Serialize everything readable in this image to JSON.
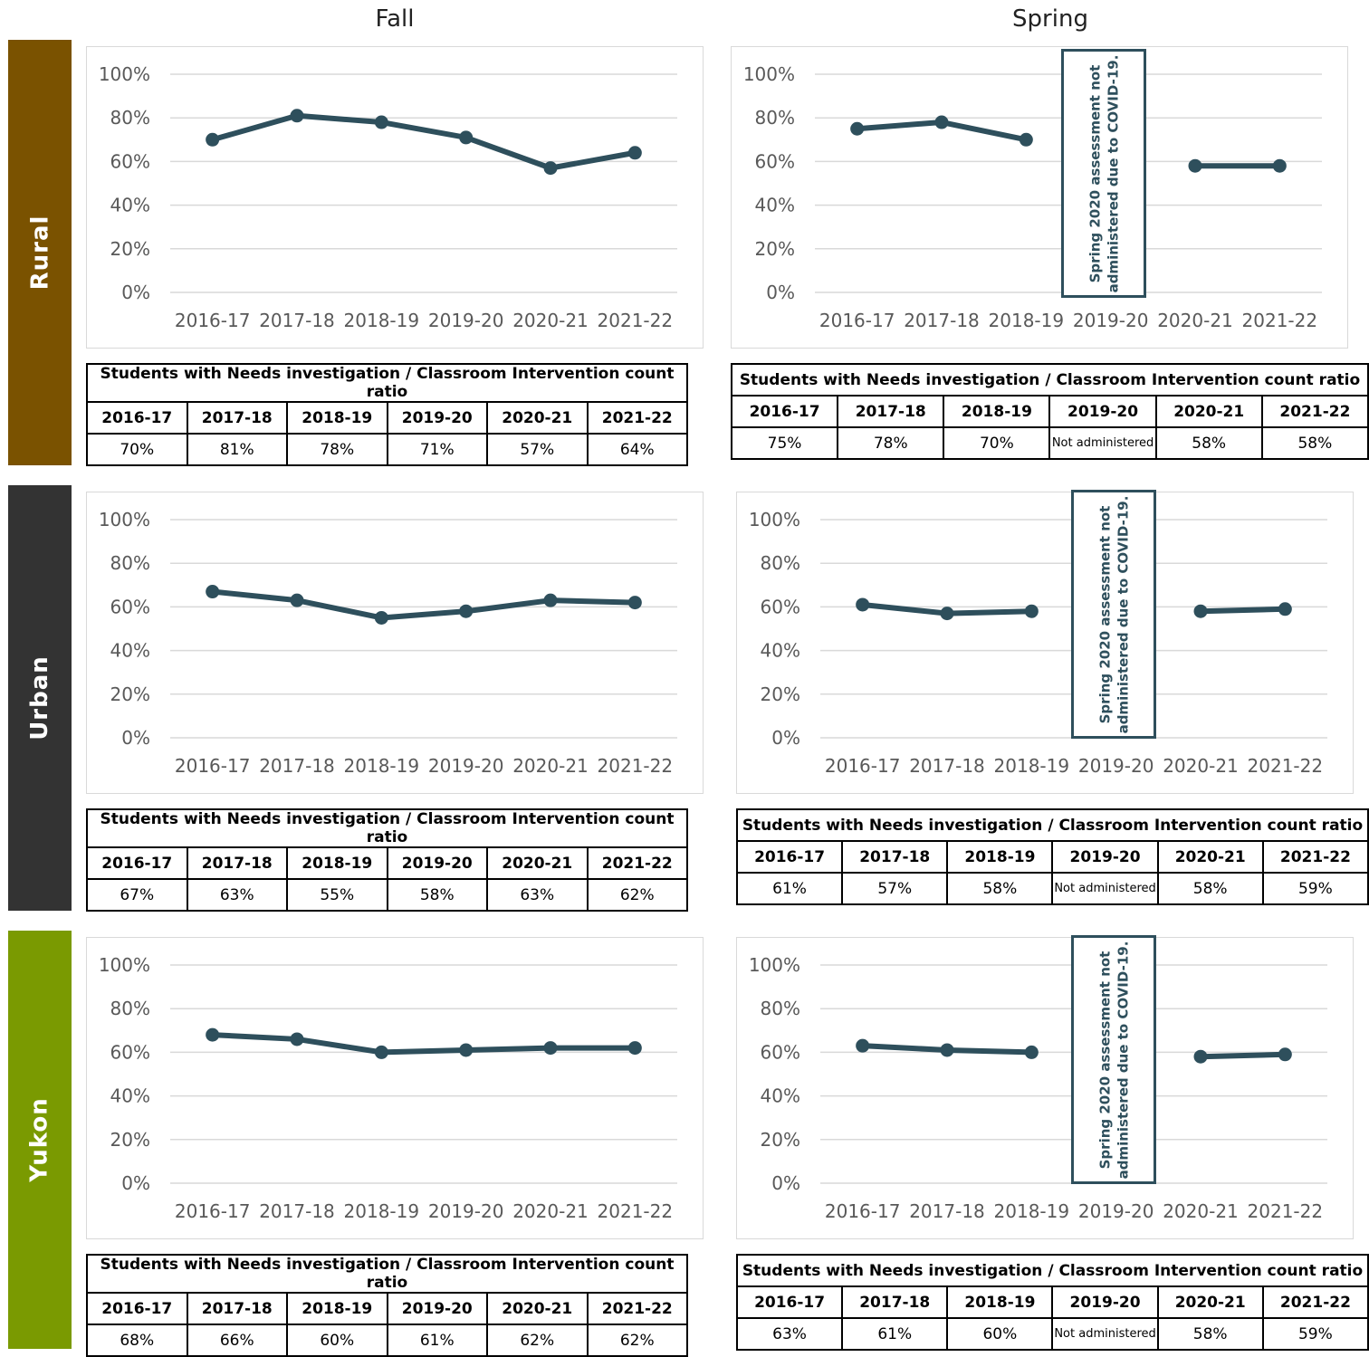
{
  "headers": {
    "fall": "Fall",
    "spring": "Spring"
  },
  "colors": {
    "line": "#2e4f5c",
    "grid": "#d9d9d9",
    "tick_text": "#595959"
  },
  "table_title": "Students with Needs investigation / Classroom Intervention count ratio",
  "years": [
    "2016-17",
    "2017-18",
    "2018-19",
    "2019-20",
    "2020-21",
    "2021-22"
  ],
  "spring_note": "Spring 2020 assessment not\nadministered due to COVID-19.",
  "rows": [
    {
      "label": "Rural",
      "color": "#7a5200",
      "fall_table": [
        "70%",
        "81%",
        "78%",
        "71%",
        "57%",
        "64%"
      ],
      "spring_table": [
        "75%",
        "78%",
        "70%",
        "Not administered",
        "58%",
        "58%"
      ]
    },
    {
      "label": "Urban",
      "color": "#333333",
      "fall_table": [
        "67%",
        "63%",
        "55%",
        "58%",
        "63%",
        "62%"
      ],
      "spring_table": [
        "61%",
        "57%",
        "58%",
        "Not administered",
        "58%",
        "59%"
      ]
    },
    {
      "label": "Yukon",
      "color": "#7a9a01",
      "fall_table": [
        "68%",
        "66%",
        "60%",
        "61%",
        "62%",
        "62%"
      ],
      "spring_table": [
        "63%",
        "61%",
        "60%",
        "Not administered",
        "58%",
        "59%"
      ]
    }
  ],
  "chart_data": [
    {
      "type": "line",
      "group": "Rural",
      "term": "Fall",
      "categories": [
        "2016-17",
        "2017-18",
        "2018-19",
        "2019-20",
        "2020-21",
        "2021-22"
      ],
      "values": [
        70,
        81,
        78,
        71,
        57,
        64
      ],
      "ylim": [
        0,
        100
      ],
      "yticks": [
        "0%",
        "20%",
        "40%",
        "60%",
        "80%",
        "100%"
      ],
      "grid": true
    },
    {
      "type": "line",
      "group": "Rural",
      "term": "Spring",
      "categories": [
        "2016-17",
        "2017-18",
        "2018-19",
        "2019-20",
        "2020-21",
        "2021-22"
      ],
      "values": [
        75,
        78,
        70,
        null,
        58,
        58
      ],
      "ylim": [
        0,
        100
      ],
      "yticks": [
        "0%",
        "20%",
        "40%",
        "60%",
        "80%",
        "100%"
      ],
      "grid": true
    },
    {
      "type": "line",
      "group": "Urban",
      "term": "Fall",
      "categories": [
        "2016-17",
        "2017-18",
        "2018-19",
        "2019-20",
        "2020-21",
        "2021-22"
      ],
      "values": [
        67,
        63,
        55,
        58,
        63,
        62
      ],
      "ylim": [
        0,
        100
      ],
      "yticks": [
        "0%",
        "20%",
        "40%",
        "60%",
        "80%",
        "100%"
      ],
      "grid": true
    },
    {
      "type": "line",
      "group": "Urban",
      "term": "Spring",
      "categories": [
        "2016-17",
        "2017-18",
        "2018-19",
        "2019-20",
        "2020-21",
        "2021-22"
      ],
      "values": [
        61,
        57,
        58,
        null,
        58,
        59
      ],
      "ylim": [
        0,
        100
      ],
      "yticks": [
        "0%",
        "20%",
        "40%",
        "60%",
        "80%",
        "100%"
      ],
      "grid": true
    },
    {
      "type": "line",
      "group": "Yukon",
      "term": "Fall",
      "categories": [
        "2016-17",
        "2017-18",
        "2018-19",
        "2019-20",
        "2020-21",
        "2021-22"
      ],
      "values": [
        68,
        66,
        60,
        61,
        62,
        62
      ],
      "ylim": [
        0,
        100
      ],
      "yticks": [
        "0%",
        "20%",
        "40%",
        "60%",
        "80%",
        "100%"
      ],
      "grid": true
    },
    {
      "type": "line",
      "group": "Yukon",
      "term": "Spring",
      "categories": [
        "2016-17",
        "2017-18",
        "2018-19",
        "2019-20",
        "2020-21",
        "2021-22"
      ],
      "values": [
        63,
        61,
        60,
        null,
        58,
        59
      ],
      "ylim": [
        0,
        100
      ],
      "yticks": [
        "0%",
        "20%",
        "40%",
        "60%",
        "80%",
        "100%"
      ],
      "grid": true
    }
  ]
}
